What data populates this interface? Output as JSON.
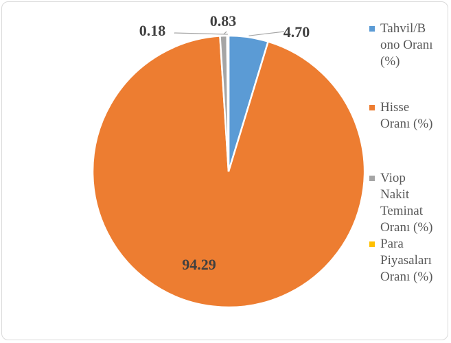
{
  "chart_data": {
    "type": "pie",
    "slices": [
      {
        "name": "Tahvil/B ono Oranı (%)",
        "value": 4.7,
        "label": "4.70",
        "color": "#5b9bd5"
      },
      {
        "name": "Hisse Oranı (%)",
        "value": 94.29,
        "label": "94.29",
        "color": "#ed7d31"
      },
      {
        "name": "Viop Nakit Teminat Oranı (%)",
        "value": 0.83,
        "label": "0.83",
        "color": "#a5a5a5"
      },
      {
        "name": "Para Piyasaları Oranı (%)",
        "value": 0.18,
        "label": "0.18",
        "color": "#ffc000"
      }
    ],
    "legend_position": "right"
  },
  "legend": {
    "items": [
      {
        "lines": [
          "Tahvil/B",
          "ono Oranı",
          "(%)"
        ],
        "color": "#5b9bd5"
      },
      {
        "lines": [
          "Hisse",
          "Oranı (%)"
        ],
        "color": "#ed7d31"
      },
      {
        "lines": [
          "Viop",
          "Nakit",
          "Teminat",
          "Oranı (%)"
        ],
        "color": "#a5a5a5"
      },
      {
        "lines": [
          "Para",
          "Piyasaları",
          "Oranı (%)"
        ],
        "color": "#ffc000"
      }
    ]
  }
}
